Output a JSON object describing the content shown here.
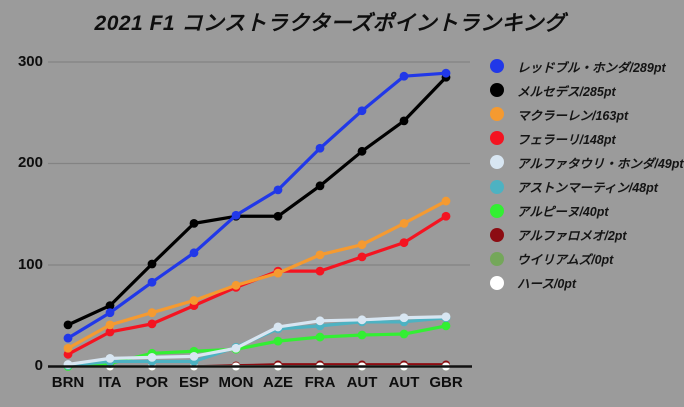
{
  "title": "2021 F1 コンストラクターズポイントランキング",
  "chart_data": {
    "type": "line",
    "categories": [
      "BRN",
      "ITA",
      "POR",
      "ESP",
      "MON",
      "AZE",
      "FRA",
      "AUT",
      "AUT",
      "GBR"
    ],
    "xlabel": "",
    "ylabel": "",
    "ylim": [
      0,
      300
    ],
    "y_ticks": [
      0,
      100,
      200,
      300
    ],
    "grid": true,
    "legend_position": "right",
    "colors": {
      "background": "#9b9b9b",
      "gridline": "#838383",
      "axis": "#111111",
      "text": "#0e0e0e"
    },
    "series": [
      {
        "name": "レッドブル・ホンダ",
        "legend_label": "レッドブル・ホンダ/289pt",
        "total_points": 289,
        "color": "#2138e8",
        "values": [
          28,
          53,
          83,
          112,
          149,
          174,
          215,
          252,
          286,
          289
        ]
      },
      {
        "name": "メルセデス",
        "legend_label": "メルセデス/285pt",
        "total_points": 285,
        "color": "#000000",
        "values": [
          41,
          60,
          101,
          141,
          148,
          148,
          178,
          212,
          242,
          285
        ]
      },
      {
        "name": "マクラーレン",
        "legend_label": "マクラーレン/163pt",
        "total_points": 163,
        "color": "#f59a30",
        "values": [
          18,
          41,
          53,
          65,
          80,
          92,
          110,
          120,
          141,
          163
        ]
      },
      {
        "name": "フェラーリ",
        "legend_label": "フェラーリ/148pt",
        "total_points": 148,
        "color": "#f41421",
        "values": [
          12,
          34,
          42,
          60,
          78,
          94,
          94,
          108,
          122,
          148
        ]
      },
      {
        "name": "アルファタウリ・ホンダ",
        "legend_label": "アルファタウリ・ホンダ/49pt",
        "total_points": 49,
        "color": "#d8e6f2",
        "values": [
          2,
          8,
          9,
          10,
          18,
          39,
          45,
          46,
          48,
          49
        ]
      },
      {
        "name": "アストンマーティン",
        "legend_label": "アストンマーティン/48pt",
        "total_points": 48,
        "color": "#4db2c2",
        "values": [
          1,
          5,
          5,
          5,
          19,
          37,
          40,
          44,
          44,
          48
        ]
      },
      {
        "name": "アルピーヌ",
        "legend_label": "アルピーヌ/40pt",
        "total_points": 40,
        "color": "#33ef33",
        "values": [
          0,
          3,
          13,
          15,
          17,
          25,
          29,
          31,
          32,
          40
        ]
      },
      {
        "name": "アルファロメオ",
        "legend_label": "アルファロメオ/2pt",
        "total_points": 2,
        "color": "#8c0c12",
        "values": [
          0,
          0,
          0,
          0,
          1,
          2,
          2,
          2,
          2,
          2
        ]
      },
      {
        "name": "ウイリアムズ",
        "legend_label": "ウイリアムズ/0pt",
        "total_points": 0,
        "color": "#74a75a",
        "values": [
          0,
          0,
          0,
          0,
          0,
          0,
          0,
          0,
          0,
          0
        ]
      },
      {
        "name": "ハース",
        "legend_label": "ハース/0pt",
        "total_points": 0,
        "color": "#ffffff",
        "values": [
          0,
          0,
          0,
          0,
          0,
          0,
          0,
          0,
          0,
          0
        ]
      }
    ],
    "draw_order": [
      7,
      8,
      9,
      6,
      5,
      4,
      3,
      2,
      1,
      0
    ]
  }
}
